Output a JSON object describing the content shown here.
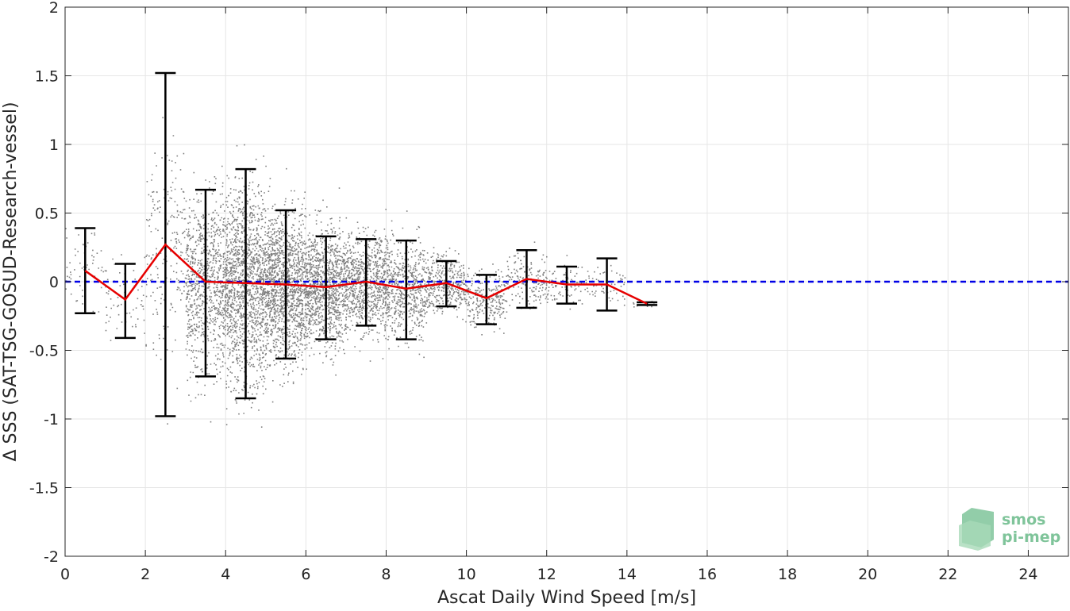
{
  "chart_data": {
    "type": "scatter",
    "xlabel": "Ascat Daily Wind Speed [m/s]",
    "ylabel": "Δ SSS (SAT-TSG-GOSUD-Research-vessel)",
    "xlim": [
      0,
      25
    ],
    "ylim": [
      -2,
      2
    ],
    "x_ticks": [
      "0",
      "2",
      "4",
      "6",
      "8",
      "10",
      "12",
      "14",
      "16",
      "18",
      "20",
      "22",
      "24"
    ],
    "y_ticks": [
      "-2",
      "-1.5",
      "-1",
      "-0.5",
      "0",
      "0.5",
      "1",
      "1.5",
      "2"
    ],
    "grid": true,
    "reference_line": {
      "y": 0,
      "style": "dashed",
      "color": "#0000e6"
    },
    "binned_stats": {
      "x": [
        0.5,
        1.5,
        2.5,
        3.5,
        4.5,
        5.5,
        6.5,
        7.5,
        8.5,
        9.5,
        10.5,
        11.5,
        12.5,
        13.5,
        14.5
      ],
      "mean": [
        0.08,
        -0.13,
        0.27,
        0.0,
        -0.01,
        -0.02,
        -0.04,
        0.0,
        -0.05,
        -0.01,
        -0.12,
        0.02,
        -0.02,
        -0.02,
        -0.16
      ],
      "upper": [
        0.39,
        0.13,
        1.52,
        0.67,
        0.82,
        0.52,
        0.33,
        0.31,
        0.3,
        0.15,
        0.05,
        0.23,
        0.11,
        0.17,
        -0.15
      ],
      "lower": [
        -0.23,
        -0.41,
        -0.98,
        -0.69,
        -0.85,
        -0.56,
        -0.42,
        -0.32,
        -0.42,
        -0.18,
        -0.31,
        -0.19,
        -0.16,
        -0.21,
        -0.17
      ],
      "mean_color": "#e60000",
      "errorbar_color": "#000000"
    },
    "scatter_color": "#808080",
    "scatter_note_density": "dense cloud concentrated between 3 and 10 m/s"
  },
  "logo": {
    "line1": "smos",
    "line2": "pi-mep"
  }
}
